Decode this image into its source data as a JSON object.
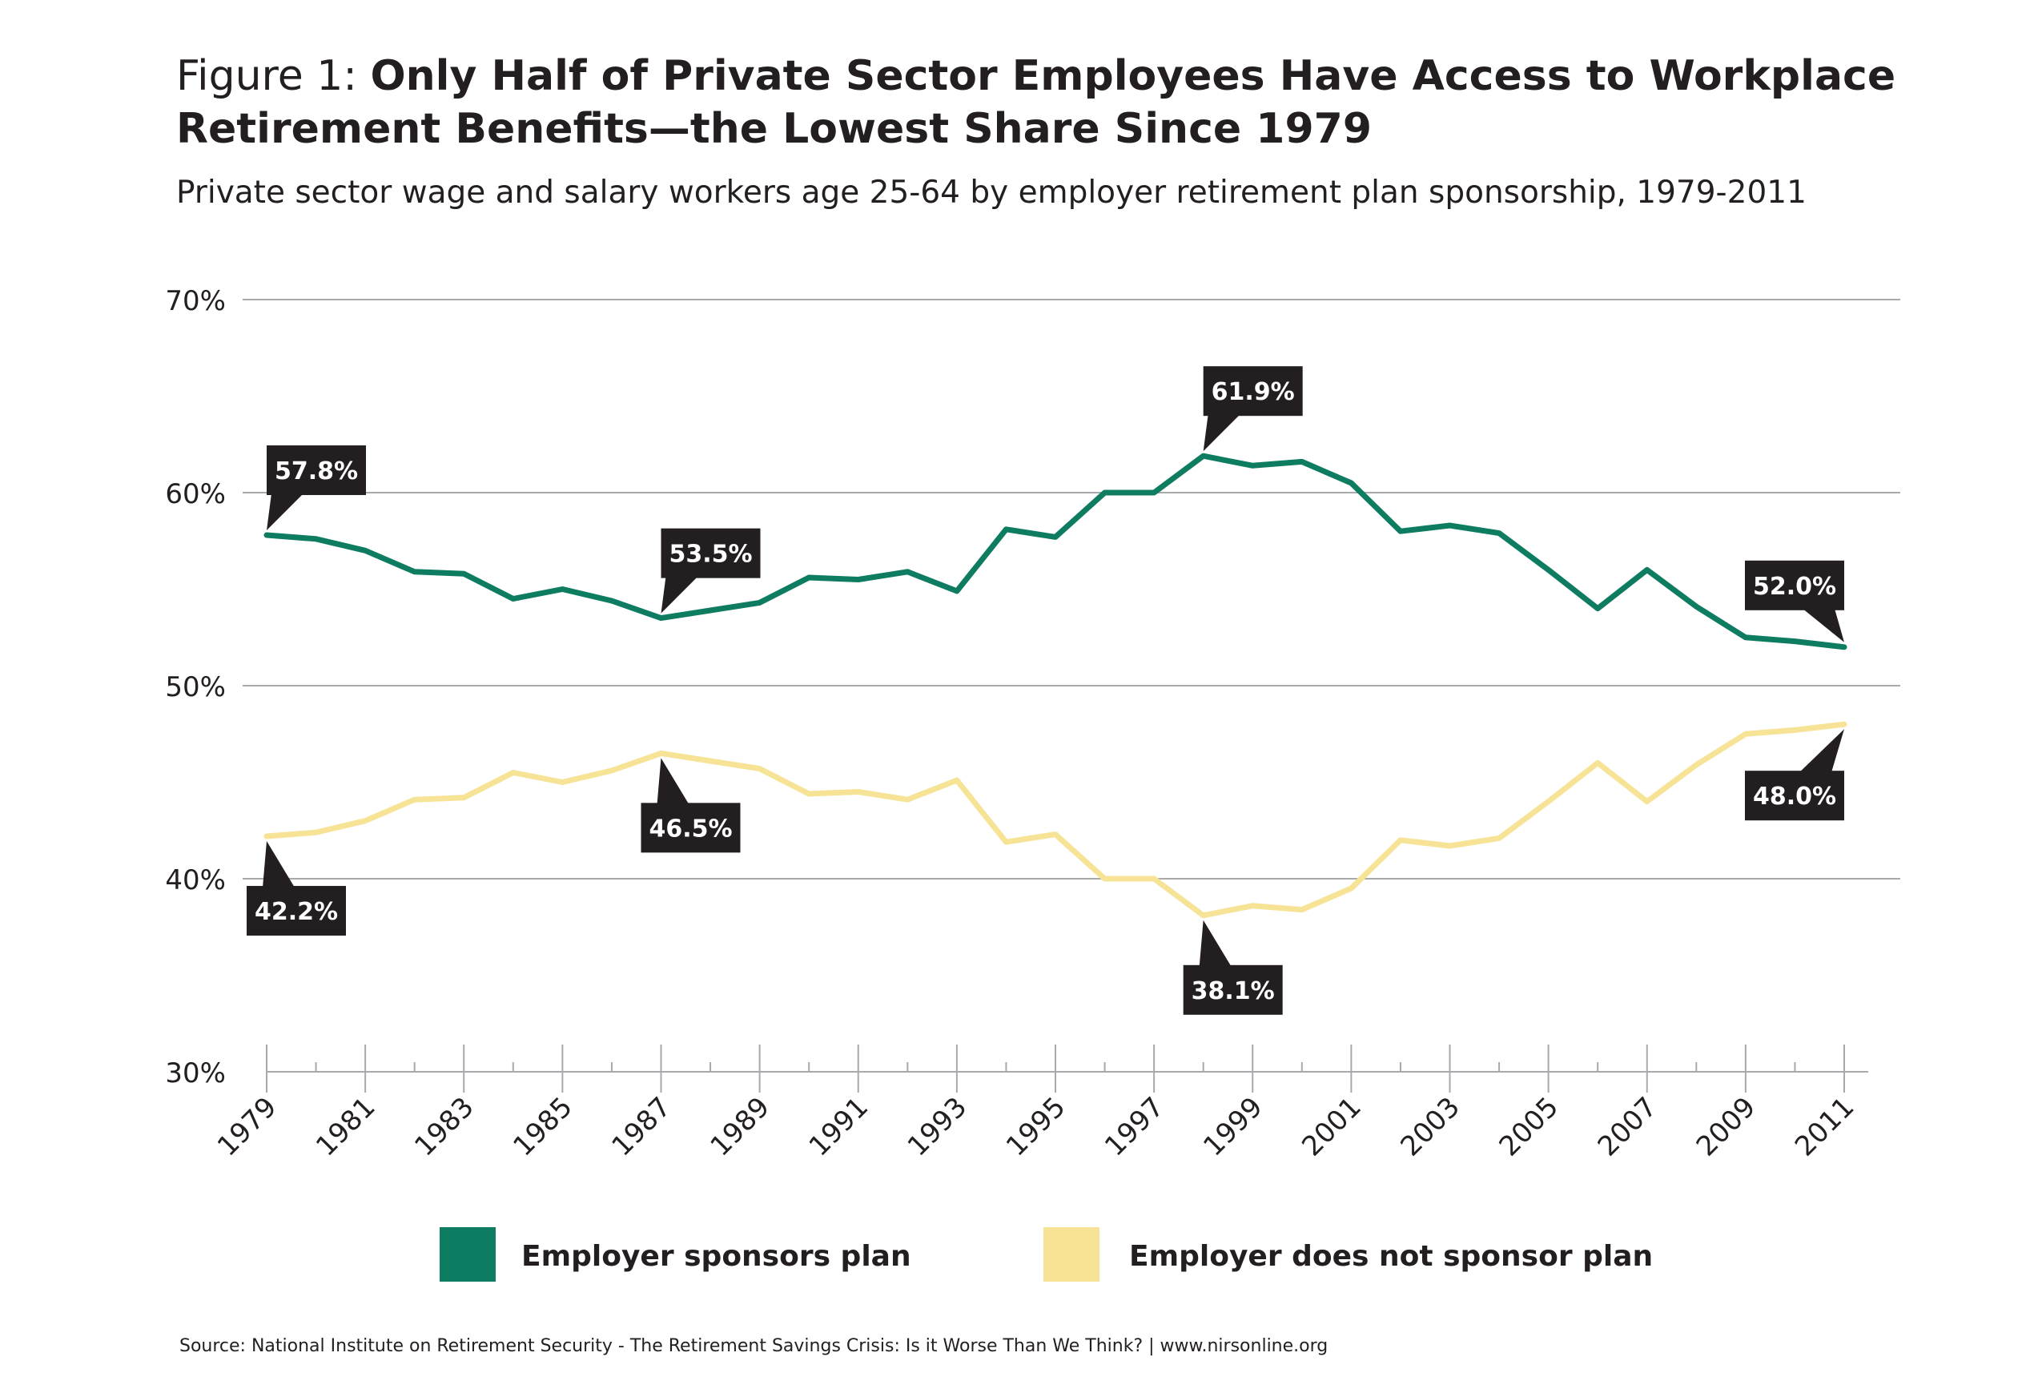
{
  "header": {
    "figure_prefix": "Figure 1: ",
    "title": "Only Half of Private Sector Employees Have Access to Workplace Retirement Benefits—the Lowest Share Since 1979",
    "subtitle": "Private sector wage and salary workers age 25-64 by employer retirement plan sponsorship, 1979-2011"
  },
  "source": "Source: National Institute on Retirement Security - The Retirement Savings Crisis:  Is it Worse Than We Think? | www.nirsonline.org",
  "chart_data": {
    "type": "line",
    "x": [
      1979,
      1980,
      1981,
      1982,
      1983,
      1984,
      1985,
      1986,
      1987,
      1988,
      1989,
      1990,
      1991,
      1992,
      1993,
      1994,
      1995,
      1996,
      1997,
      1998,
      1999,
      2000,
      2001,
      2002,
      2003,
      2004,
      2005,
      2006,
      2007,
      2008,
      2009,
      2010,
      2011
    ],
    "x_tick_labels": [
      "1979",
      "1981",
      "1983",
      "1985",
      "1987",
      "1989",
      "1991",
      "1993",
      "1995",
      "1997",
      "1999",
      "2001",
      "2003",
      "2005",
      "2007",
      "2009",
      "2011"
    ],
    "y_ticks": [
      30,
      40,
      50,
      60,
      70
    ],
    "y_tick_labels": [
      "30%",
      "40%",
      "50%",
      "60%",
      "70%"
    ],
    "ylim": [
      30,
      70
    ],
    "xlim": [
      1979,
      2011
    ],
    "grid": "horizontal",
    "legend_position": "bottom",
    "series": [
      {
        "name": "Employer sponsors plan",
        "color": "#0e7c61",
        "values": [
          57.8,
          57.6,
          57.0,
          55.9,
          55.8,
          54.5,
          55.0,
          54.4,
          53.5,
          53.9,
          54.3,
          55.6,
          55.5,
          55.9,
          54.9,
          58.1,
          57.7,
          60.0,
          60.0,
          61.9,
          61.4,
          61.6,
          60.5,
          58.0,
          58.3,
          57.9,
          56.0,
          54.0,
          56.0,
          54.1,
          52.5,
          52.3,
          52.0
        ]
      },
      {
        "name": "Employer does not sponsor plan",
        "color": "#f7e396",
        "values": [
          42.2,
          42.4,
          43.0,
          44.1,
          44.2,
          45.5,
          45.0,
          45.6,
          46.5,
          46.1,
          45.7,
          44.4,
          44.5,
          44.1,
          45.1,
          41.9,
          42.3,
          40.0,
          40.0,
          38.1,
          38.6,
          38.4,
          39.5,
          42.0,
          41.7,
          42.1,
          44.0,
          46.0,
          44.0,
          45.9,
          47.5,
          47.7,
          48.0
        ]
      }
    ],
    "annotations": [
      {
        "text": "57.8%",
        "series": 0,
        "x": 1979,
        "y": 57.8,
        "side": "above"
      },
      {
        "text": "53.5%",
        "series": 0,
        "x": 1987,
        "y": 53.5,
        "side": "above"
      },
      {
        "text": "61.9%",
        "series": 0,
        "x": 1998,
        "y": 61.9,
        "side": "above"
      },
      {
        "text": "52.0%",
        "series": 0,
        "x": 2011,
        "y": 52.0,
        "side": "above"
      },
      {
        "text": "42.2%",
        "series": 1,
        "x": 1979,
        "y": 42.2,
        "side": "below"
      },
      {
        "text": "46.5%",
        "series": 1,
        "x": 1987,
        "y": 46.5,
        "side": "below"
      },
      {
        "text": "38.1%",
        "series": 1,
        "x": 1998,
        "y": 38.1,
        "side": "below"
      },
      {
        "text": "48.0%",
        "series": 1,
        "x": 2011,
        "y": 48.0,
        "side": "below"
      }
    ]
  }
}
